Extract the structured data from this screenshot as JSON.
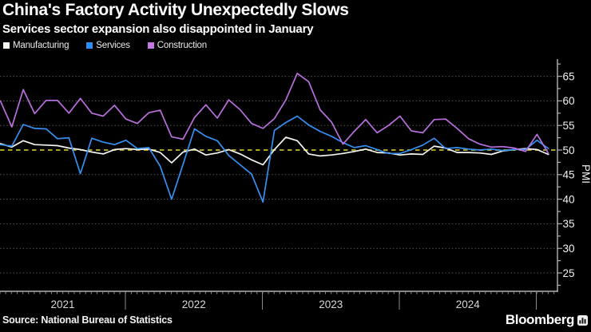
{
  "header": {
    "title": "China's Factory Activity Unexpectedly Slows",
    "subtitle": "Services sector expansion also disappointed in January"
  },
  "legend": {
    "items": [
      {
        "label": "Manufacturing",
        "color": "#f6f6f1"
      },
      {
        "label": "Services",
        "color": "#2f8df2"
      },
      {
        "label": "Construction",
        "color": "#c478e8"
      }
    ]
  },
  "chart_data": {
    "type": "line",
    "x_start": "2021-01",
    "x_end": "2025-01",
    "x_freq": "monthly",
    "n_points": 49,
    "x_year_labels": [
      "2021",
      "2022",
      "2023",
      "2024"
    ],
    "ylabel": "PMI",
    "ylim": [
      21,
      68.5
    ],
    "yticks": [
      25,
      30,
      35,
      40,
      45,
      50,
      55,
      60,
      65
    ],
    "ytick_minor_step": 2.5,
    "grid": "dotted horizontal",
    "legend_position": "top-left",
    "baseline": {
      "value": 50,
      "style": "dashed",
      "color": "#a9a227"
    },
    "series": [
      {
        "name": "Manufacturing",
        "color": "#f6f6f1",
        "values": [
          51.3,
          50.6,
          51.9,
          51.1,
          51.0,
          50.9,
          50.4,
          50.1,
          49.6,
          49.2,
          50.1,
          50.3,
          50.1,
          50.2,
          49.5,
          47.4,
          49.6,
          50.2,
          49.0,
          49.4,
          50.1,
          49.2,
          48.0,
          47.0,
          50.1,
          52.6,
          51.9,
          49.2,
          48.8,
          49.0,
          49.3,
          49.7,
          50.2,
          49.5,
          49.4,
          49.0,
          49.2,
          49.1,
          50.8,
          50.4,
          49.5,
          49.5,
          49.4,
          49.1,
          49.8,
          50.1,
          50.3,
          50.1,
          49.1
        ]
      },
      {
        "name": "Services",
        "color": "#3590f2",
        "values": [
          51.1,
          50.8,
          55.2,
          54.4,
          54.3,
          52.3,
          52.5,
          45.2,
          52.4,
          51.6,
          51.1,
          52.0,
          50.3,
          50.5,
          46.7,
          40.0,
          47.1,
          54.3,
          52.8,
          51.9,
          48.9,
          47.0,
          45.1,
          39.4,
          54.0,
          55.6,
          56.9,
          55.1,
          53.8,
          52.8,
          51.5,
          50.5,
          50.9,
          50.1,
          49.3,
          49.3,
          50.1,
          51.0,
          52.4,
          50.3,
          50.5,
          50.2,
          50.0,
          50.2,
          49.9,
          50.1,
          50.1,
          52.0,
          50.3
        ]
      },
      {
        "name": "Construction",
        "color": "#b96fde",
        "values": [
          60.0,
          54.7,
          62.3,
          57.4,
          60.1,
          60.1,
          57.5,
          60.5,
          57.5,
          56.9,
          59.1,
          56.3,
          55.4,
          57.6,
          58.1,
          52.7,
          52.2,
          56.6,
          59.2,
          56.5,
          60.2,
          58.2,
          55.4,
          54.4,
          56.4,
          60.2,
          65.6,
          63.9,
          58.2,
          55.7,
          51.2,
          53.8,
          56.2,
          53.5,
          55.0,
          56.9,
          53.9,
          53.5,
          56.2,
          56.3,
          54.4,
          52.3,
          51.2,
          50.6,
          50.7,
          50.4,
          49.7,
          53.2,
          49.3
        ]
      }
    ]
  },
  "footer": {
    "source": "Source: National Bureau of Statistics",
    "brand": "Bloomberg"
  }
}
